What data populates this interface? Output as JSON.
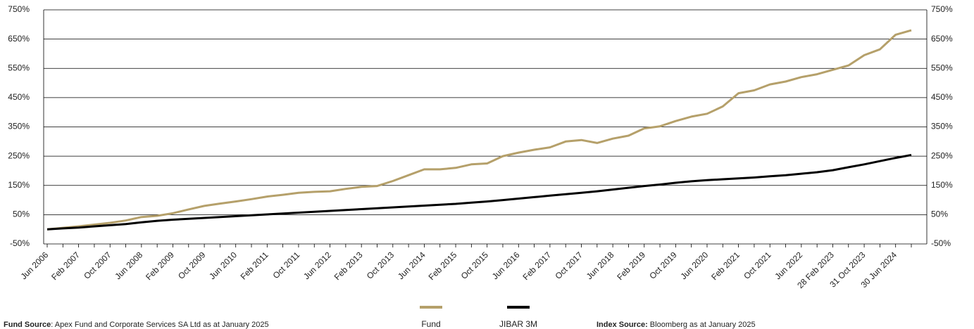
{
  "chart_data": {
    "type": "line",
    "categories": [
      "Jun 2006",
      null,
      "Feb 2007",
      null,
      "Oct 2007",
      null,
      "Jun 2008",
      null,
      "Feb 2009",
      null,
      "Oct 2009",
      null,
      "Jun 2010",
      null,
      "Feb 2011",
      null,
      "Oct 2011",
      null,
      "Jun 2012",
      null,
      "Feb 2013",
      null,
      "Oct 2013",
      null,
      "Jun 2014",
      null,
      "Feb 2015",
      null,
      "Oct 2015",
      null,
      "Jun 2016",
      null,
      "Feb 2017",
      null,
      "Oct 2017",
      null,
      "Jun 2018",
      null,
      "Feb 2019",
      null,
      "Oct 2019",
      null,
      "Jun 2020",
      null,
      "Feb 2021",
      null,
      "Oct 2021",
      null,
      "Jun 2022",
      null,
      "28 Feb 2023",
      null,
      "31 Oct 2023",
      null,
      "30 Jun 2024",
      null
    ],
    "series": [
      {
        "name": "Fund",
        "color": "#b5a06a",
        "values": [
          0,
          5,
          10,
          16,
          22,
          30,
          42,
          46,
          55,
          68,
          80,
          88,
          95,
          103,
          112,
          118,
          125,
          128,
          130,
          138,
          145,
          148,
          165,
          185,
          205,
          205,
          210,
          222,
          225,
          250,
          262,
          272,
          280,
          300,
          305,
          295,
          310,
          320,
          345,
          352,
          370,
          385,
          395,
          420,
          465,
          475,
          495,
          505,
          520,
          530,
          545,
          560,
          595,
          615,
          665,
          680
        ]
      },
      {
        "name": "JIBAR 3M",
        "color": "#000000",
        "values": [
          0,
          3,
          6,
          10,
          14,
          18,
          24,
          29,
          33,
          36,
          39,
          42,
          45,
          48,
          51,
          54,
          57,
          60,
          63,
          66,
          69,
          72,
          75,
          78,
          81,
          84,
          87,
          91,
          95,
          100,
          105,
          110,
          115,
          120,
          125,
          130,
          136,
          142,
          148,
          153,
          159,
          164,
          168,
          171,
          174,
          177,
          181,
          185,
          190,
          195,
          202,
          212,
          222,
          233,
          244,
          254
        ]
      }
    ],
    "ylim": [
      -50,
      750
    ],
    "yticks": [
      {
        "value": -50,
        "label": "-50%"
      },
      {
        "value": 50,
        "label": "50%"
      },
      {
        "value": 150,
        "label": "150%"
      },
      {
        "value": 250,
        "label": "250%"
      },
      {
        "value": 350,
        "label": "350%"
      },
      {
        "value": 450,
        "label": "450%"
      },
      {
        "value": 550,
        "label": "550%"
      },
      {
        "value": 650,
        "label": "650%"
      },
      {
        "value": 750,
        "label": "750%"
      }
    ],
    "grid": true,
    "fund_source_label": "Fund Source",
    "fund_source_text": ": Apex Fund and Corporate Services SA Ltd as at January 2025",
    "index_source_label": "Index Source:",
    "index_source_text": " Bloomberg as at January 2025"
  }
}
